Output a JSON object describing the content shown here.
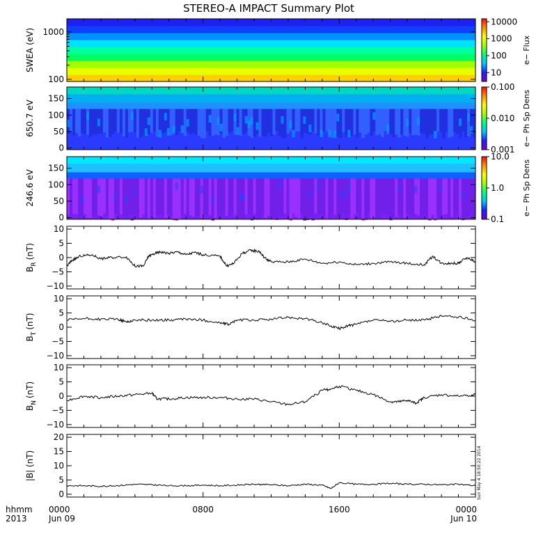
{
  "chart_data": {
    "title": "STEREO-A IMPACT Summary Plot",
    "x_axis": {
      "range_hours": [
        0,
        24
      ],
      "tick_hours": [
        0,
        8,
        16,
        24
      ],
      "tick_labels": [
        "0000",
        "0800",
        "1600",
        "0000"
      ],
      "date_labels": [
        "Jun 09",
        "",
        "",
        "Jun 10"
      ],
      "corner_labels": [
        "hhmm",
        "2013"
      ]
    },
    "timestamp": "Sun May  4 18:50:22 2014",
    "colormap": [
      "#7a00d0",
      "#2020ff",
      "#00c8ff",
      "#00ff80",
      "#a0ff00",
      "#ffff00",
      "#ff9000",
      "#ff1000"
    ],
    "panels": [
      {
        "id": "swea",
        "type": "heatmap",
        "ylabel": "SWEA (eV)",
        "yscale": "log",
        "ylim": [
          90,
          1900
        ],
        "yticks": [
          100,
          1000
        ],
        "ytick_labels": [
          "100",
          "1000"
        ],
        "colorbar": {
          "label": "e− Flux",
          "scale": "log",
          "range": [
            3,
            15000
          ],
          "ticks": [
            10,
            100,
            1000,
            10000
          ],
          "tick_labels": [
            "10",
            "100",
            "1000",
            "10000"
          ]
        },
        "pattern": "energy-bands",
        "band_colors": [
          "#ffd000",
          "#e8ff00",
          "#a0ff00",
          "#00ff60",
          "#00ffa0",
          "#00e0ff",
          "#0090ff",
          "#1040ff",
          "#2020f0"
        ]
      },
      {
        "id": "pad650",
        "type": "heatmap",
        "ylabel": "650.7 eV",
        "yscale": "linear",
        "ylim": [
          -5,
          185
        ],
        "yticks": [
          0,
          50,
          100,
          150
        ],
        "ytick_labels": [
          "0",
          "50",
          "100",
          "150"
        ],
        "colorbar": {
          "label": "e− Ph Sp Dens",
          "scale": "log",
          "range": [
            0.001,
            0.1
          ],
          "ticks": [
            0.001,
            0.01,
            0.1
          ],
          "tick_labels": [
            "0.001",
            "0.010",
            "0.100"
          ]
        },
        "pattern": "pitch-angle-high"
      },
      {
        "id": "pad246",
        "type": "heatmap",
        "ylabel": "246.6 eV",
        "yscale": "linear",
        "ylim": [
          -5,
          185
        ],
        "yticks": [
          0,
          50,
          100,
          150
        ],
        "ytick_labels": [
          "0",
          "50",
          "100",
          "150"
        ],
        "colorbar": {
          "label": "e− Ph Sp Dens",
          "scale": "log",
          "range": [
            0.1,
            10
          ],
          "ticks": [
            0.1,
            1,
            10
          ],
          "tick_labels": [
            "0.1",
            "1.0",
            "10.0"
          ]
        },
        "pattern": "pitch-angle-low"
      },
      {
        "id": "br",
        "type": "line",
        "ylabel": "B",
        "ylabel_sub": "R",
        "ylabel_unit": "(nT)",
        "ylim": [
          -11,
          11
        ],
        "yticks": [
          -10,
          -5,
          0,
          5,
          10
        ],
        "ytick_labels": [
          "−10",
          "−5",
          "0",
          "5",
          "10"
        ],
        "x": [
          0,
          0.3,
          0.8,
          1.5,
          2.0,
          2.5,
          3.5,
          4.0,
          4.5,
          4.8,
          5.2,
          5.5,
          6.0,
          6.5,
          7.0,
          7.5,
          8.0,
          9.0,
          9.4,
          9.8,
          10.3,
          10.8,
          11.3,
          11.6,
          12.0,
          13.0,
          14.0,
          15.0,
          16.0,
          17.0,
          18.0,
          19.0,
          20.0,
          21.0,
          21.5,
          22.0,
          22.5,
          23.0,
          23.5,
          24.0
        ],
        "y": [
          -3.0,
          -1.0,
          0.5,
          1.0,
          -0.5,
          0.0,
          0.3,
          -3.0,
          -3.0,
          0.5,
          1.5,
          2.0,
          1.5,
          2.0,
          1.0,
          1.8,
          1.0,
          0.5,
          -3.0,
          -2.0,
          1.5,
          2.5,
          2.2,
          0.0,
          -1.5,
          -1.5,
          -0.5,
          -2.0,
          -1.5,
          -2.5,
          -2.0,
          -1.5,
          -2.0,
          -2.5,
          0.5,
          -2.0,
          -2.0,
          -2.0,
          0.0,
          -1.5
        ]
      },
      {
        "id": "bt",
        "type": "line",
        "ylabel": "B",
        "ylabel_sub": "T",
        "ylabel_unit": "(nT)",
        "ylim": [
          -11,
          11
        ],
        "yticks": [
          -10,
          -5,
          0,
          5,
          10
        ],
        "ytick_labels": [
          "−10",
          "−5",
          "0",
          "5",
          "10"
        ],
        "x": [
          0,
          1.0,
          2.0,
          3.0,
          3.5,
          4.0,
          5.0,
          6.0,
          7.0,
          8.0,
          9.0,
          9.5,
          10.0,
          11.0,
          12.0,
          13.0,
          14.0,
          15.0,
          15.5,
          16.0,
          16.5,
          17.0,
          18.0,
          19.0,
          20.0,
          21.0,
          22.0,
          23.0,
          24.0
        ],
        "y": [
          2.5,
          3.0,
          2.8,
          2.8,
          1.8,
          2.5,
          2.5,
          2.5,
          2.8,
          2.5,
          1.5,
          1.0,
          2.5,
          2.5,
          2.8,
          3.5,
          3.0,
          1.5,
          0.5,
          -0.5,
          0.5,
          1.0,
          2.5,
          2.0,
          2.5,
          2.5,
          4.0,
          3.5,
          2.5
        ]
      },
      {
        "id": "bn",
        "type": "line",
        "ylabel": "B",
        "ylabel_sub": "N",
        "ylabel_unit": "(nT)",
        "ylim": [
          -11,
          11
        ],
        "yticks": [
          -10,
          -5,
          0,
          5,
          10
        ],
        "ytick_labels": [
          "−10",
          "−5",
          "0",
          "5",
          "10"
        ],
        "x": [
          0,
          1.0,
          2.0,
          3.0,
          4.0,
          5.0,
          5.3,
          6.0,
          7.0,
          8.0,
          9.0,
          10.0,
          11.0,
          12.0,
          13.0,
          14.0,
          15.0,
          15.5,
          16.0,
          17.0,
          18.0,
          19.0,
          19.5,
          20.0,
          20.5,
          21.0,
          22.0,
          23.0,
          24.0
        ],
        "y": [
          -1.5,
          0.0,
          -0.5,
          0.0,
          0.5,
          1.0,
          -1.0,
          -1.0,
          -0.5,
          -0.5,
          -0.5,
          -1.0,
          -1.0,
          -2.0,
          -3.0,
          -2.0,
          2.0,
          2.5,
          3.5,
          2.0,
          0.5,
          -2.0,
          -2.0,
          -1.5,
          -2.5,
          -0.5,
          0.5,
          0.0,
          0.5
        ]
      },
      {
        "id": "bmag",
        "type": "line",
        "ylabel": "|B| (nT)",
        "ylim": [
          -1,
          21
        ],
        "yticks": [
          0,
          5,
          10,
          15,
          20
        ],
        "ytick_labels": [
          "0",
          "5",
          "10",
          "15",
          "20"
        ],
        "x": [
          0,
          1.0,
          2.0,
          3.0,
          4.0,
          5.0,
          6.0,
          7.0,
          8.0,
          9.0,
          10.0,
          11.0,
          12.0,
          13.0,
          14.0,
          15.0,
          15.5,
          16.0,
          17.0,
          18.0,
          19.0,
          20.0,
          21.0,
          22.0,
          23.0,
          24.0
        ],
        "y": [
          3.0,
          3.0,
          2.8,
          3.0,
          3.5,
          3.3,
          3.0,
          3.0,
          3.2,
          3.0,
          3.2,
          3.5,
          3.3,
          3.0,
          3.5,
          3.2,
          2.0,
          4.0,
          3.5,
          3.5,
          3.8,
          3.5,
          3.5,
          3.3,
          3.5,
          3.0
        ]
      }
    ]
  }
}
